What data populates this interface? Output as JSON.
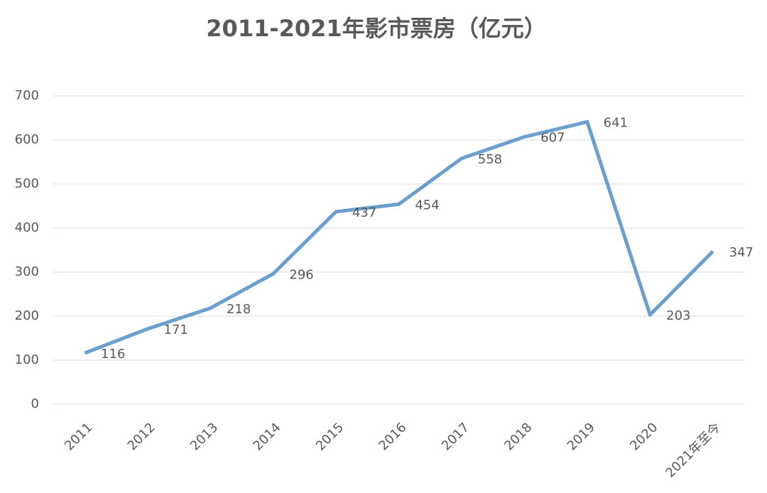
{
  "chart_data": {
    "type": "line",
    "title": "2011-2021年影市票房（亿元）",
    "categories": [
      "2011",
      "2012",
      "2013",
      "2014",
      "2015",
      "2016",
      "2017",
      "2018",
      "2019",
      "2020",
      "2021年至今"
    ],
    "values": [
      116,
      171,
      218,
      296,
      437,
      454,
      558,
      607,
      641,
      203,
      347
    ],
    "color": "#6a9fd0",
    "ylim": [
      0,
      700
    ],
    "yticks": [
      0,
      100,
      200,
      300,
      400,
      500,
      600,
      700
    ],
    "grid": true
  }
}
